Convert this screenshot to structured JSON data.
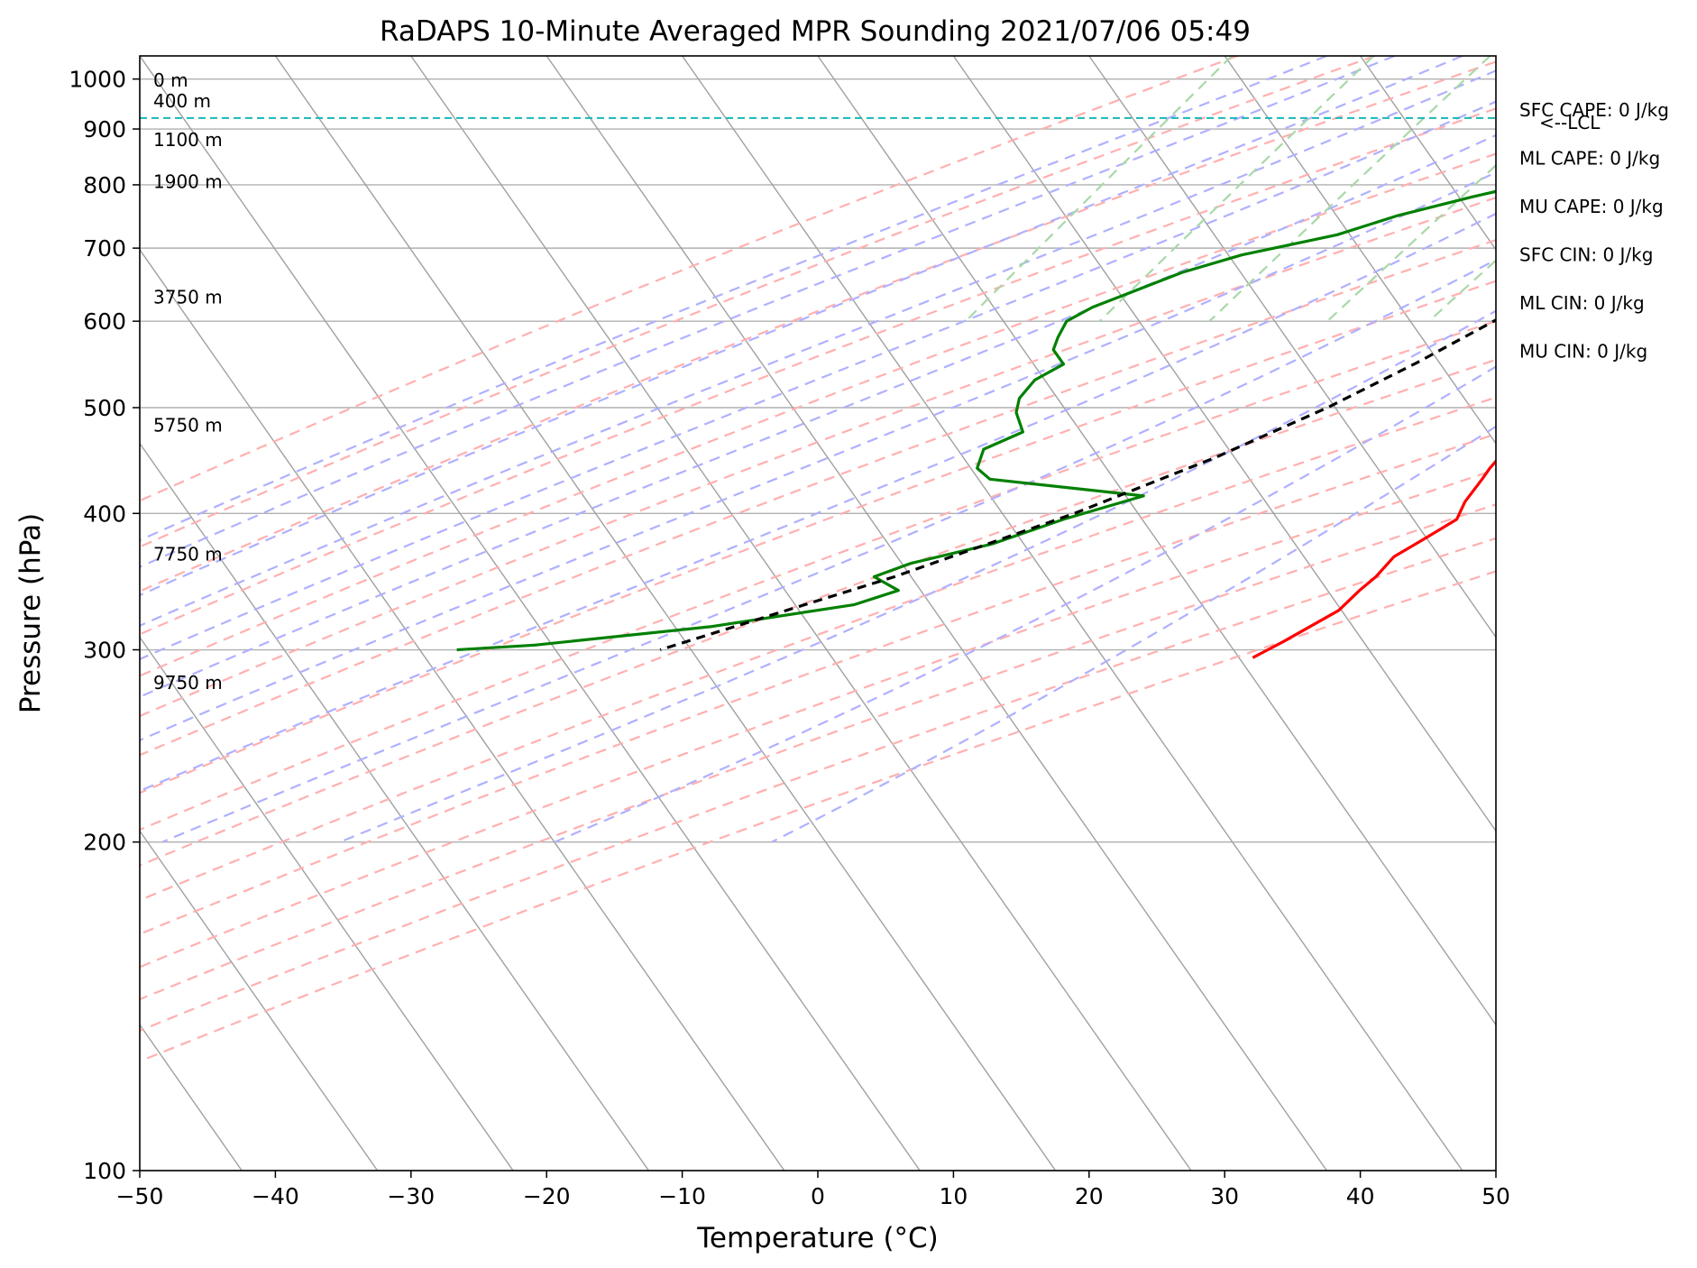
{
  "chart_data": {
    "type": "line",
    "subtype": "skew-t log-p",
    "title": "RaDAPS 10-Minute Averaged MPR Sounding 2021/07/06 05:49",
    "xlabel": "Temperature (°C)",
    "ylabel": "Pressure (hPa)",
    "xlim": [
      -50,
      50
    ],
    "ylim": [
      1050,
      100
    ],
    "y_scale": "log",
    "x_ticks": [
      "−50",
      "−40",
      "−30",
      "−20",
      "−10",
      "0",
      "10",
      "20",
      "30",
      "40",
      "50"
    ],
    "x_tick_values": [
      -50,
      -40,
      -30,
      -20,
      -10,
      0,
      10,
      20,
      30,
      40,
      50
    ],
    "y_ticks": [
      "100",
      "200",
      "300",
      "400",
      "500",
      "600",
      "700",
      "800",
      "900",
      "1000"
    ],
    "y_tick_values": [
      100,
      200,
      300,
      400,
      500,
      600,
      700,
      800,
      900,
      1000
    ],
    "grid": true,
    "series": [
      {
        "role": "temperature",
        "color": "#ff0000",
        "points": [
          [
            997,
            25.5
          ],
          [
            980,
            22.0
          ],
          [
            975,
            23.0
          ],
          [
            965,
            24.3
          ],
          [
            950,
            24.8
          ],
          [
            940,
            26.8
          ],
          [
            925,
            29.5
          ],
          [
            905,
            30.5
          ],
          [
            893,
            30.5
          ],
          [
            882,
            30.2
          ],
          [
            872,
            30.3
          ],
          [
            862,
            30.8
          ],
          [
            853,
            31.5
          ],
          [
            845,
            31.6
          ],
          [
            835,
            31.3
          ],
          [
            820,
            30.8
          ],
          [
            800,
            30.0
          ],
          [
            780,
            29.2
          ],
          [
            760,
            28.6
          ],
          [
            740,
            27.8
          ],
          [
            720,
            27.0
          ],
          [
            705,
            27.0
          ],
          [
            680,
            25.8
          ],
          [
            660,
            24.6
          ],
          [
            645,
            23.8
          ],
          [
            620,
            23.8
          ],
          [
            605,
            23.2
          ],
          [
            590,
            23.5
          ],
          [
            570,
            23.0
          ],
          [
            540,
            21.4
          ],
          [
            510,
            18.5
          ],
          [
            485,
            16.5
          ],
          [
            470,
            15.0
          ],
          [
            455,
            13.5
          ],
          [
            440,
            13.3
          ],
          [
            430,
            13.3
          ],
          [
            410,
            13.2
          ],
          [
            395,
            13.5
          ],
          [
            380,
            12.2
          ],
          [
            365,
            10.8
          ],
          [
            350,
            10.5
          ],
          [
            340,
            10.0
          ],
          [
            326,
            9.5
          ],
          [
            305,
            7.0
          ],
          [
            295,
            5.6
          ]
        ]
      },
      {
        "role": "dewpoint",
        "color": "#008000",
        "points": [
          [
            997,
            20.0
          ],
          [
            985,
            13.5
          ],
          [
            970,
            11.5
          ],
          [
            955,
            10.2
          ],
          [
            940,
            9.8
          ],
          [
            925,
            10.5
          ],
          [
            918,
            13.0
          ],
          [
            905,
            8.0
          ],
          [
            892,
            4.8
          ],
          [
            870,
            5.0
          ],
          [
            845,
            4.8
          ],
          [
            820,
            3.8
          ],
          [
            800,
            1.3
          ],
          [
            780,
            -2.0
          ],
          [
            750,
            -6.5
          ],
          [
            720,
            -10.0
          ],
          [
            690,
            -16.0
          ],
          [
            665,
            -19.5
          ],
          [
            640,
            -22.0
          ],
          [
            618,
            -24.3
          ],
          [
            600,
            -25.5
          ],
          [
            580,
            -25.3
          ],
          [
            565,
            -25.0
          ],
          [
            548,
            -23.5
          ],
          [
            530,
            -24.8
          ],
          [
            510,
            -25.0
          ],
          [
            495,
            -24.5
          ],
          [
            475,
            -23.0
          ],
          [
            458,
            -25.0
          ],
          [
            440,
            -24.5
          ],
          [
            430,
            -23.0
          ],
          [
            415,
            -10.8
          ],
          [
            395,
            -15.5
          ],
          [
            375,
            -19.5
          ],
          [
            360,
            -24.5
          ],
          [
            350,
            -26.5
          ],
          [
            340,
            -24.0
          ],
          [
            330,
            -26.5
          ],
          [
            315,
            -36.0
          ],
          [
            303,
            -48.0
          ],
          [
            300,
            -53.5
          ]
        ]
      },
      {
        "role": "parcel",
        "color": "#000000",
        "points": [
          [
            997,
            25.5
          ],
          [
            980,
            24.2
          ],
          [
            960,
            22.8
          ],
          [
            940,
            21.0
          ],
          [
            921,
            19.4
          ],
          [
            900,
            19.0
          ],
          [
            850,
            17.5
          ],
          [
            800,
            15.8
          ],
          [
            750,
            13.8
          ],
          [
            700,
            11.6
          ],
          [
            650,
            9.0
          ],
          [
            600,
            6.0
          ],
          [
            550,
            2.5
          ],
          [
            500,
            -1.8
          ],
          [
            450,
            -7.5
          ],
          [
            400,
            -15.0
          ],
          [
            350,
            -25.0
          ],
          [
            300,
            -38.5
          ]
        ]
      }
    ],
    "lcl_pressure": 921,
    "lcl_label": "<--LCL",
    "height_labels": [
      {
        "text": "0 m",
        "p": 997
      },
      {
        "text": "400 m",
        "p": 955
      },
      {
        "text": "1100 m",
        "p": 880
      },
      {
        "text": "1900 m",
        "p": 805
      },
      {
        "text": "3750 m",
        "p": 631
      },
      {
        "text": "5750 m",
        "p": 482
      },
      {
        "text": "7750 m",
        "p": 367
      },
      {
        "text": "9750 m",
        "p": 280
      }
    ],
    "annotations": [
      "SFC CAPE: 0 J/kg",
      "ML CAPE: 0 J/kg",
      "MU CAPE: 0 J/kg",
      "SFC CIN: 0 J/kg",
      "ML CIN: 0 J/kg",
      "MU CIN: 0 J/kg"
    ],
    "dry_adiabats_theta_c": [
      -30,
      -20,
      -10,
      0,
      10,
      20,
      30,
      40,
      50,
      60,
      70,
      80,
      90,
      100,
      110,
      120
    ],
    "moist_adiabats_start_c": [
      -20,
      -15,
      -10,
      -5,
      0,
      5,
      10,
      15,
      20,
      25,
      30,
      35
    ],
    "mixing_ratio_lines_gkg": [
      0.4,
      1,
      2,
      4,
      7,
      10,
      16,
      24,
      32
    ],
    "colors": {
      "isobar_grid": "#b0b0b0",
      "isotherm": "#a0a0a0",
      "dry_adiabat": "#ffb0b0",
      "moist_adiabat": "#b0b0ff",
      "mixing_ratio": "#a8d8a8",
      "lcl_line": "#17b8b8"
    }
  }
}
